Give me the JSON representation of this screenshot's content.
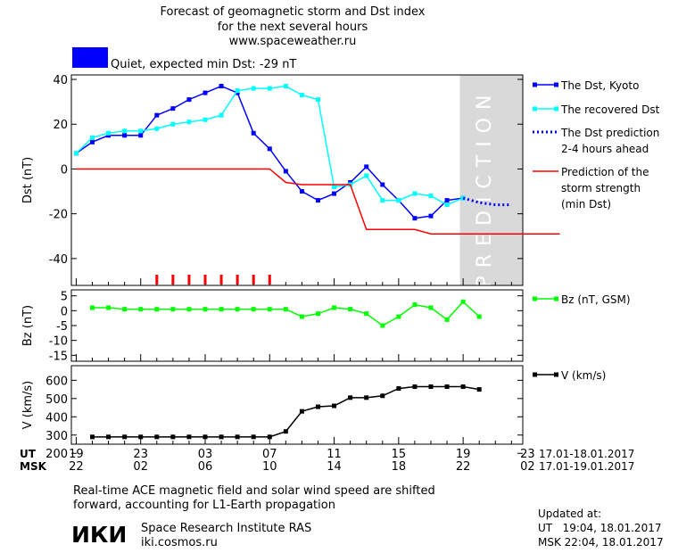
{
  "header": {
    "title_line1": "Forecast of geomagnetic storm and Dst index",
    "title_line2": "for the next several hours",
    "title_line3": "www.spaceweather.ru",
    "status_text": "Quiet, expected min Dst: -29 nT",
    "status_color": "#0000ff"
  },
  "time_axis": {
    "ut_label": "UT",
    "msk_label": "MSK",
    "ut_ticks": [
      "19",
      "23",
      "03",
      "07",
      "11",
      "15",
      "19",
      "23"
    ],
    "msk_ticks": [
      "22",
      "02",
      "06",
      "10",
      "14",
      "18",
      "22",
      "02"
    ],
    "ut_range": "17.01-18.01.2017",
    "msk_range": "17.01-19.01.2017"
  },
  "prediction_label": "PREDICTION",
  "prediction_zone_color": "#d9d9d9",
  "footer": {
    "note_line1": "Real-time ACE magnetic field and solar wind speed are shifted",
    "note_line2": "forward, accounting for L1-Earth propagation",
    "logo_text": "ИКИ",
    "institute": "Space Research Institute RAS",
    "site": "iki.cosmos.ru",
    "updated_label": "Updated at:",
    "updated_ut": "UT   19:04, 18.01.2017",
    "updated_msk": "MSK 22:04, 18.01.2017"
  },
  "chart_data": [
    {
      "type": "line",
      "ylabel": "Dst (nT)",
      "ylim": [
        -52,
        42
      ],
      "yticks": [
        40,
        20,
        0,
        -20,
        -40
      ],
      "x_hours_ut": "hours since 19 UT 17.01.2017",
      "series": [
        {
          "name": "The Dst, Kyoto",
          "color": "#0000ff",
          "style": "solid-square",
          "x": [
            0,
            1,
            2,
            3,
            4,
            5,
            6,
            7,
            8,
            9,
            10,
            11,
            12,
            13,
            14,
            15,
            16,
            17,
            18,
            19,
            20,
            21,
            22,
            23,
            24
          ],
          "y": [
            7,
            12,
            15,
            15,
            15,
            24,
            27,
            31,
            34,
            37,
            34,
            16,
            9,
            -1,
            -10,
            -14,
            -11,
            -6,
            1,
            -7,
            -14,
            -22,
            -21,
            -14,
            -13
          ]
        },
        {
          "name": "The recovered Dst",
          "color": "#00ffff",
          "style": "solid-square",
          "x": [
            0,
            1,
            2,
            3,
            4,
            5,
            6,
            7,
            8,
            9,
            10,
            11,
            12,
            13,
            14,
            15,
            16,
            17,
            18,
            19,
            20,
            21,
            22,
            23,
            24
          ],
          "y": [
            7,
            14,
            16,
            17,
            17,
            18,
            20,
            21,
            22,
            24,
            35,
            36,
            36,
            37,
            33,
            31,
            -8,
            -7,
            -3,
            -14,
            -14,
            -11,
            -12,
            -16,
            -13
          ]
        },
        {
          "name": "The Dst prediction\n2-4 hours ahead",
          "color": "#0000ff",
          "style": "dotted",
          "x": [
            24,
            25,
            26,
            27
          ],
          "y": [
            -13,
            -15,
            -16,
            -16
          ]
        },
        {
          "name": "Prediction of the\nstorm strength\n(min Dst)",
          "color": "#ff0000",
          "style": "solid",
          "x": [
            0,
            12,
            13,
            14,
            17,
            18,
            21,
            22,
            30
          ],
          "y": [
            0,
            0,
            -6,
            -7,
            -7,
            -27,
            -27,
            -29,
            -29
          ]
        }
      ],
      "markers_x": [
        5,
        6,
        7,
        8,
        9,
        10,
        11,
        12
      ]
    },
    {
      "type": "line",
      "ylabel": "Bz (nT)",
      "ylim": [
        -17,
        7
      ],
      "yticks": [
        5,
        0,
        -5,
        -10,
        -15
      ],
      "series": [
        {
          "name": "Bz (nT, GSM)",
          "color": "#00ff00",
          "x": [
            1,
            2,
            3,
            4,
            5,
            6,
            7,
            8,
            9,
            10,
            11,
            12,
            13,
            14,
            15,
            16,
            17,
            18,
            19,
            20,
            21,
            22,
            23,
            24,
            25
          ],
          "y": [
            1,
            1,
            0.5,
            0.5,
            0.5,
            0.5,
            0.5,
            0.5,
            0.5,
            0.5,
            0.5,
            0.5,
            0.5,
            -2,
            -1,
            1,
            0.5,
            -1,
            -5,
            -2,
            2,
            1,
            -3,
            3,
            -2
          ]
        }
      ]
    },
    {
      "type": "line",
      "ylabel": "V (km/s)",
      "ylim": [
        250,
        680
      ],
      "yticks": [
        600,
        500,
        400,
        300,
        200
      ],
      "series": [
        {
          "name": "V (km/s)",
          "color": "#000000",
          "x": [
            1,
            2,
            3,
            4,
            5,
            6,
            7,
            8,
            9,
            10,
            11,
            12,
            13,
            14,
            15,
            16,
            17,
            18,
            19,
            20,
            21,
            22,
            23,
            24,
            25
          ],
          "y": [
            290,
            290,
            290,
            290,
            290,
            290,
            290,
            290,
            290,
            290,
            290,
            290,
            320,
            430,
            455,
            460,
            505,
            505,
            515,
            555,
            565,
            565,
            565,
            565,
            550
          ]
        }
      ]
    }
  ]
}
